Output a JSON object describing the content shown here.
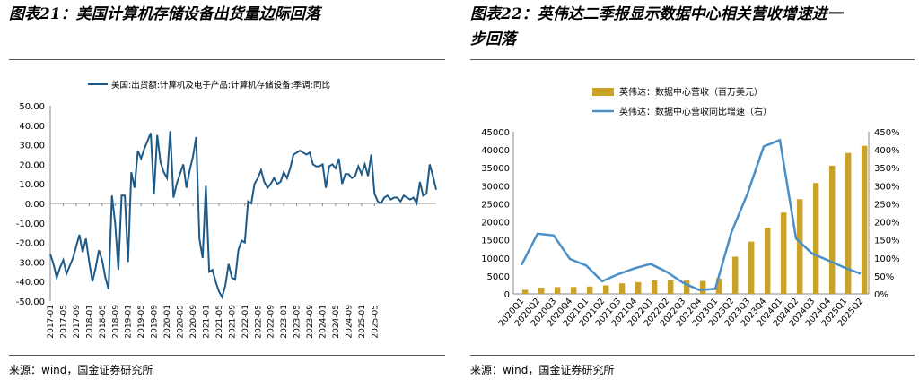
{
  "left": {
    "title": "图表21：美国计算机存储设备出货量边际回落",
    "source": "来源：wind，国金证券研究所",
    "chart_data": {
      "type": "line",
      "legend": "美国:出货额:计算机及电子产品:计算机存储设备:季调:同比",
      "legend_position": "top",
      "color": "#1f5a87",
      "ylim": [
        -50,
        50
      ],
      "yticks": [
        "50.00",
        "40.00",
        "30.00",
        "20.00",
        "10.00",
        "0.00",
        "-10.00",
        "-20.00",
        "-30.00",
        "-40.00",
        "-50.00"
      ],
      "xticks": [
        "2017-01",
        "2017-05",
        "2017-09",
        "2018-01",
        "2018-05",
        "2018-09",
        "2019-01",
        "2019-05",
        "2019-09",
        "2020-01",
        "2020-05",
        "2020-09",
        "2021-01",
        "2021-05",
        "2021-09",
        "2022-01",
        "2022-05",
        "2022-09",
        "2023-01",
        "2023-05",
        "2023-09",
        "2024-01",
        "2024-05",
        "2024-09",
        "2025-01",
        "2025-05"
      ],
      "start": "2017-01",
      "values": [
        -26,
        -31,
        -38,
        -33,
        -29,
        -36,
        -32,
        -28,
        -22,
        -16,
        -25,
        -18,
        -30,
        -40,
        -33,
        -24,
        -29,
        -38,
        -44,
        4,
        -10,
        -34,
        4,
        4,
        -30,
        16,
        8,
        27,
        23,
        28,
        32,
        36,
        5,
        35,
        21,
        16,
        13,
        37,
        3,
        10,
        15,
        20,
        8,
        17,
        24,
        34,
        -18,
        -28,
        9,
        -35,
        -34,
        -40,
        -45,
        -48,
        -42,
        -31,
        -38,
        -39,
        -24,
        -19,
        -20,
        1,
        0,
        10,
        13,
        17,
        11,
        8,
        10,
        13,
        10,
        11,
        16,
        13,
        18,
        25,
        26,
        27,
        26,
        25,
        26,
        20,
        19,
        19,
        20,
        8,
        19,
        20,
        18,
        23,
        10,
        15,
        15,
        13,
        14,
        19,
        15,
        20,
        14,
        25,
        5,
        1,
        0,
        3,
        4,
        2,
        3,
        3,
        1,
        4,
        3,
        2,
        3,
        0,
        11,
        4,
        5,
        20,
        14,
        7
      ]
    }
  },
  "right": {
    "title": "图表22：英伟达二季报显示数据中心相关营收增速进一步回落",
    "title_line1": "图表22：英伟达二季报显示数据中心相关营收增速进一",
    "title_line2": "步回落",
    "source": "来源：wind，国金证券研究所",
    "chart_data": {
      "type": "bar+line",
      "categories": [
        "2020Q1",
        "2020Q2",
        "2020Q3",
        "2020Q4",
        "2021Q1",
        "2021Q2",
        "2021Q3",
        "2021Q4",
        "2022Q1",
        "2022Q2",
        "2022Q3",
        "2022Q4",
        "2023Q1",
        "2023Q2",
        "2023Q3",
        "2023Q4",
        "2024Q1",
        "2024Q2",
        "2024Q3",
        "2024Q4",
        "2025Q1",
        "2025Q2"
      ],
      "series": [
        {
          "name": "英伟达：数据中心营收（百万美元）",
          "type": "bar",
          "axis": "left",
          "color": "#c9a227",
          "values": [
            1141,
            1752,
            1900,
            1903,
            2048,
            2370,
            2936,
            3263,
            3750,
            3806,
            3833,
            3616,
            4284,
            10323,
            14514,
            18404,
            22563,
            26272,
            30771,
            35580,
            39112,
            41100
          ]
        },
        {
          "name": "英伟达：数据中心营收同比增速（右）",
          "type": "line",
          "axis": "right",
          "color": "#4a8fc8",
          "values": [
            80,
            167,
            162,
            97,
            79,
            35,
            55,
            71,
            83,
            61,
            31,
            11,
            14,
            171,
            279,
            409,
            427,
            154,
            112,
            93,
            73,
            56
          ]
        }
      ],
      "ylim_left": [
        0,
        45000
      ],
      "yticks_left": [
        "45000",
        "40000",
        "35000",
        "30000",
        "25000",
        "20000",
        "15000",
        "10000",
        "5000",
        "0"
      ],
      "ylim_right": [
        0,
        450
      ],
      "yticks_right": [
        "450%",
        "400%",
        "350%",
        "300%",
        "250%",
        "200%",
        "150%",
        "100%",
        "50%",
        "0%"
      ],
      "legend_position": "top"
    }
  }
}
